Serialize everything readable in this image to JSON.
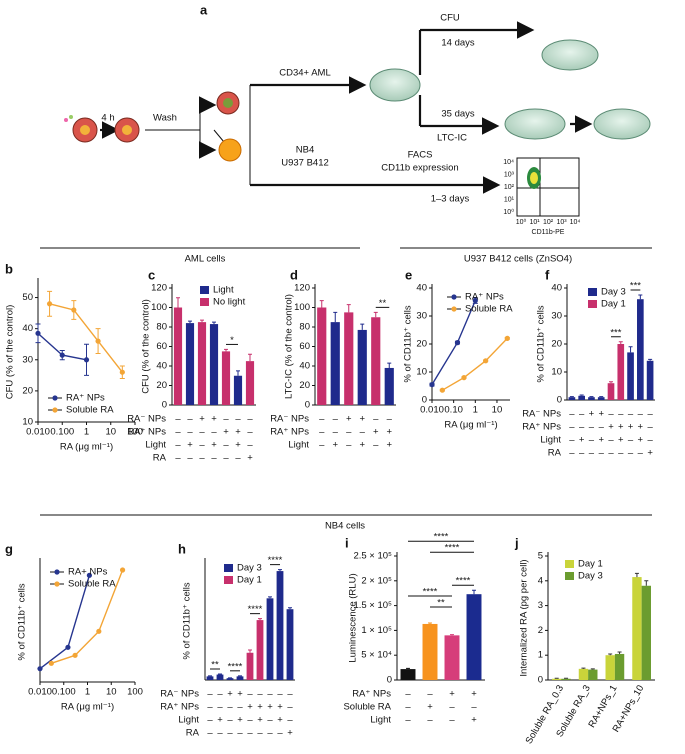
{
  "diagram": {
    "panel": "a",
    "labels": {
      "four_h": "4 h",
      "wash": "Wash",
      "cd34": "CD34+ AML",
      "cfu": "CFU",
      "days14": "14 days",
      "days35": "35 days",
      "ltcic": "LTC-IC",
      "nb4": "NB4",
      "u937": "U937 B412",
      "facs": "FACS",
      "cd11b": "CD11b expression",
      "days13": "1–3 days",
      "cd11bpe": "CD11b-PE"
    },
    "flow_y_ticks": [
      "10⁴",
      "10³",
      "10²",
      "10¹",
      "10⁰"
    ],
    "flow_x_ticks": [
      "10⁰",
      "10¹",
      "10²",
      "10³",
      "10⁴"
    ]
  },
  "sections": [
    "AML cells",
    "U937 B412 cells (ZnSO4)",
    "NB4 cells"
  ],
  "chart_data": [
    {
      "type": "line",
      "panel": "b",
      "xlog": true,
      "xlabel": "RA (μg ml⁻¹)",
      "ylabel": "CFU (% of the control)",
      "xlim": [
        0.01,
        100
      ],
      "xticks": [
        {
          "value": 0.01,
          "label": "0.010"
        },
        {
          "value": 0.1,
          "label": "0.100"
        },
        1,
        10,
        100
      ],
      "ylim": [
        10,
        55
      ],
      "yticks": [
        10,
        20,
        30,
        40,
        50
      ],
      "series": [
        {
          "name": "RA⁺ NPs",
          "color": "#26358f",
          "x": [
            0.01,
            0.1,
            1
          ],
          "values": [
            38.5,
            31.5,
            30
          ],
          "errors": [
            3,
            1.5,
            5
          ]
        },
        {
          "name": "Soluble RA",
          "color": "#f3a536",
          "x": [
            0.03,
            0.3,
            3,
            30
          ],
          "values": [
            48,
            46,
            36,
            26
          ],
          "errors": [
            4,
            3,
            4,
            2
          ]
        }
      ]
    },
    {
      "type": "bar",
      "panel": "c",
      "ylabel": "CFU (% of the control)",
      "ylim": [
        0,
        120
      ],
      "yticks": [
        0,
        20,
        40,
        60,
        80,
        100,
        120
      ],
      "series": [
        {
          "name": "Light",
          "color": "#1f2a8c"
        },
        {
          "name": "No light",
          "color": "#c7306c"
        }
      ],
      "values": [
        100,
        84,
        85,
        83,
        55,
        30,
        45
      ],
      "errors": [
        10,
        2,
        2,
        2,
        2,
        5,
        7
      ],
      "bar_series": [
        1,
        0,
        1,
        0,
        1,
        0,
        1
      ],
      "annotations": [
        "*"
      ],
      "conditions": [
        {
          "label": "RA⁻ NPs",
          "cells": [
            "–",
            "–",
            "+",
            "+",
            "–",
            "–",
            "–"
          ]
        },
        {
          "label": "RA⁺ NPs",
          "cells": [
            "–",
            "–",
            "–",
            "–",
            "+",
            "+",
            "–"
          ]
        },
        {
          "label": "Light",
          "cells": [
            "–",
            "+",
            "–",
            "+",
            "–",
            "+",
            "–"
          ]
        },
        {
          "label": "RA",
          "cells": [
            "–",
            "–",
            "–",
            "–",
            "–",
            "–",
            "+"
          ]
        }
      ]
    },
    {
      "type": "bar",
      "panel": "d",
      "ylabel": "LTC-IC (% of the control)",
      "ylim": [
        0,
        120
      ],
      "yticks": [
        0,
        20,
        40,
        60,
        80,
        100,
        120
      ],
      "series": [
        {
          "name": "Light",
          "color": "#1f2a8c"
        },
        {
          "name": "No light",
          "color": "#c7306c"
        }
      ],
      "values": [
        100,
        85,
        95,
        77,
        90,
        38
      ],
      "errors": [
        7,
        10,
        8,
        6,
        5,
        5
      ],
      "bar_series": [
        1,
        0,
        1,
        0,
        1,
        0
      ],
      "annotations": [
        "**"
      ],
      "conditions": [
        {
          "label": "RA⁻ NPs",
          "cells": [
            "–",
            "–",
            "+",
            "+",
            "–",
            "–"
          ]
        },
        {
          "label": "RA⁺ NPs",
          "cells": [
            "–",
            "–",
            "–",
            "–",
            "+",
            "+"
          ]
        },
        {
          "label": "Light",
          "cells": [
            "–",
            "+",
            "–",
            "+",
            "–",
            "+"
          ]
        }
      ]
    },
    {
      "type": "line",
      "panel": "e",
      "xlog": true,
      "xlabel": "RA (μg ml⁻¹)",
      "ylabel": "% of CD11b⁺ cells",
      "xlim": [
        0.01,
        40
      ],
      "xticks": [
        {
          "value": 0.01,
          "label": "0.010"
        },
        {
          "value": 0.1,
          "label": "0.10"
        },
        1,
        10
      ],
      "ylim": [
        0,
        40
      ],
      "yticks": [
        0,
        10,
        20,
        30,
        40
      ],
      "series": [
        {
          "name": "RA⁺ NPs",
          "color": "#26358f",
          "x": [
            0.01,
            0.15,
            1
          ],
          "values": [
            5.5,
            20.5,
            35.5
          ],
          "errors": [
            0.5,
            0.5,
            1
          ]
        },
        {
          "name": "Soluble RA",
          "color": "#f3a536",
          "x": [
            0.03,
            0.3,
            3,
            30
          ],
          "values": [
            3.5,
            8,
            14,
            22
          ],
          "errors": [
            0.3,
            0.3,
            0.3,
            0.3
          ]
        }
      ]
    },
    {
      "type": "bar",
      "panel": "f",
      "ylabel": "% of CD11b⁺ cells",
      "ylim": [
        0,
        40
      ],
      "yticks": [
        0,
        10,
        20,
        30,
        40
      ],
      "series": [
        {
          "name": "Day 3",
          "color": "#1f2a8c"
        },
        {
          "name": "Day 1",
          "color": "#c7306c"
        }
      ],
      "values": [
        1,
        1.5,
        1,
        1,
        6,
        20,
        17,
        36,
        14
      ],
      "errors": [
        0.2,
        0.3,
        0.2,
        0.2,
        0.5,
        0.8,
        2,
        1.5,
        0.5
      ],
      "bar_series": [
        0,
        0,
        0,
        0,
        1,
        1,
        0,
        0,
        0
      ],
      "annotations": [
        "***",
        "***"
      ],
      "conditions": [
        {
          "label": "RA⁻ NPs",
          "cells": [
            "–",
            "–",
            "+",
            "+",
            "–",
            "–",
            "–",
            "–",
            "–"
          ]
        },
        {
          "label": "RA⁺ NPs",
          "cells": [
            "–",
            "–",
            "–",
            "–",
            "+",
            "+",
            "+",
            "+",
            "–"
          ]
        },
        {
          "label": "Light",
          "cells": [
            "–",
            "+",
            "–",
            "+",
            "–",
            "+",
            "–",
            "+",
            "–"
          ]
        },
        {
          "label": "RA",
          "cells": [
            "–",
            "–",
            "–",
            "–",
            "–",
            "–",
            "–",
            "–",
            "+"
          ]
        }
      ]
    },
    {
      "type": "line",
      "panel": "g",
      "xlog": true,
      "xlabel": "RA (μg ml⁻¹)",
      "ylabel": "% of CD11b⁺ cells",
      "xlim": [
        0.01,
        100
      ],
      "xticks": [
        {
          "value": 0.01,
          "label": "0.010"
        },
        {
          "value": 0.1,
          "label": "0.100"
        },
        1,
        10,
        100
      ],
      "ylim": [
        20,
        65
      ],
      "series": [
        {
          "name": "RA+ NPs",
          "color": "#26358f",
          "x": [
            0.01,
            0.15,
            1.2
          ],
          "values": [
            25,
            33,
            60
          ]
        },
        {
          "name": "Soluble RA",
          "color": "#f3a536",
          "x": [
            0.03,
            0.3,
            3,
            30
          ],
          "values": [
            27,
            30,
            39,
            62
          ]
        }
      ]
    },
    {
      "type": "bar",
      "panel": "h",
      "ylabel": "% of CD11b⁺ cells",
      "ylim": [
        0,
        65
      ],
      "series": [
        {
          "name": "Day 3",
          "color": "#1f2a8c"
        },
        {
          "name": "Day 1",
          "color": "#c7306c"
        }
      ],
      "values": [
        2,
        3,
        1,
        2,
        15,
        33,
        45,
        60,
        39
      ],
      "errors": [
        0.3,
        0.3,
        0.2,
        0.3,
        1.5,
        0.8,
        0.8,
        0.8,
        0.8
      ],
      "bar_series": [
        0,
        0,
        0,
        0,
        1,
        1,
        0,
        0,
        0
      ],
      "annotations": [
        "**",
        "****",
        "****",
        "****"
      ],
      "conditions": [
        {
          "label": "RA⁻ NPs",
          "cells": [
            "–",
            "–",
            "+",
            "+",
            "–",
            "–",
            "–",
            "–",
            "–"
          ]
        },
        {
          "label": "RA⁺ NPs",
          "cells": [
            "–",
            "–",
            "–",
            "–",
            "+",
            "+",
            "+",
            "+",
            "–"
          ]
        },
        {
          "label": "Light",
          "cells": [
            "–",
            "+",
            "–",
            "+",
            "–",
            "+",
            "–",
            "+",
            "–"
          ]
        },
        {
          "label": "RA",
          "cells": [
            "–",
            "–",
            "–",
            "–",
            "–",
            "–",
            "–",
            "–",
            "+"
          ]
        }
      ]
    },
    {
      "type": "bar",
      "panel": "i",
      "ylabel": "Luminescence (RLU)",
      "ylim": [
        0,
        250000
      ],
      "yticks": [
        0,
        {
          "value": 50000,
          "label": "5 × 10⁴"
        },
        {
          "value": 100000,
          "label": "1 × 10⁵"
        },
        {
          "value": 150000,
          "label": "1.5 × 10⁵"
        },
        {
          "value": 200000,
          "label": "2 × 10⁵"
        },
        {
          "value": 250000,
          "label": "2.5 × 10⁵"
        }
      ],
      "values": [
        22000,
        113000,
        90000,
        173000
      ],
      "errors": [
        1500,
        2000,
        1500,
        8000
      ],
      "colors": [
        "#111111",
        "#f7931e",
        "#d63d7a",
        "#1b2b8f"
      ],
      "annotations": [
        "****",
        "****",
        "****",
        "**",
        "****"
      ],
      "conditions": [
        {
          "label": "RA⁺ NPs",
          "cells": [
            "–",
            "–",
            "+",
            "+"
          ]
        },
        {
          "label": "Soluble RA",
          "cells": [
            "–",
            "+",
            "–",
            "–"
          ]
        },
        {
          "label": "Light",
          "cells": [
            "–",
            "–",
            "–",
            "+"
          ]
        }
      ]
    },
    {
      "type": "bar",
      "panel": "j",
      "ylabel": "Internalized RA (pg per cell)",
      "ylim": [
        0,
        5
      ],
      "yticks": [
        0,
        1,
        2,
        3,
        4,
        5
      ],
      "categories": [
        "Soluble RA_0.3",
        "Soluble RA_3",
        "RA+NPs_1",
        "RA+NPs_10"
      ],
      "series": [
        {
          "name": "Day 1",
          "color": "#c9d43a",
          "values": [
            0.05,
            0.45,
            1.0,
            4.15
          ],
          "errors": [
            0.02,
            0.03,
            0.05,
            0.15
          ]
        },
        {
          "name": "Day 3",
          "color": "#6b9c2f",
          "values": [
            0.05,
            0.42,
            1.05,
            3.8
          ],
          "errors": [
            0.02,
            0.03,
            0.08,
            0.2
          ]
        }
      ]
    }
  ]
}
